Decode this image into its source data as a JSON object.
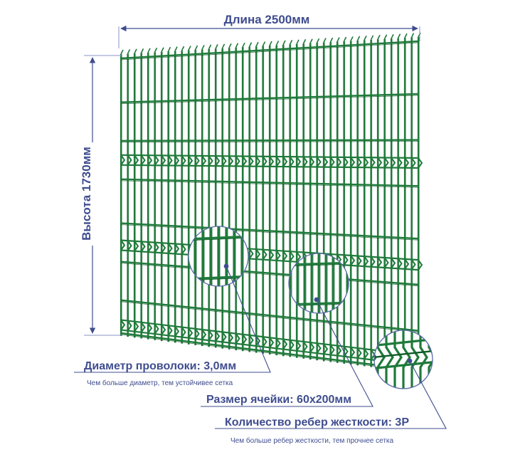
{
  "dimensions": {
    "length_label": "Длина 2500мм",
    "height_label": "Высота 1730мм"
  },
  "callouts": [
    {
      "title": "Диаметр проволоки: 3,0мм",
      "note": "Чем больше диаметр, тем устойчивее сетка"
    },
    {
      "title": "Размер ячейки: 60х200мм",
      "note": ""
    },
    {
      "title": "Количество ребер жесткости: 3Р",
      "note": "Чем больше ребер жесткости, тем прочнее сетка"
    }
  ],
  "colors": {
    "mesh": "#1f7a3a",
    "mesh_dark": "#0f5c27",
    "accent": "#3f4d8f",
    "guide": "#8a93c4"
  }
}
